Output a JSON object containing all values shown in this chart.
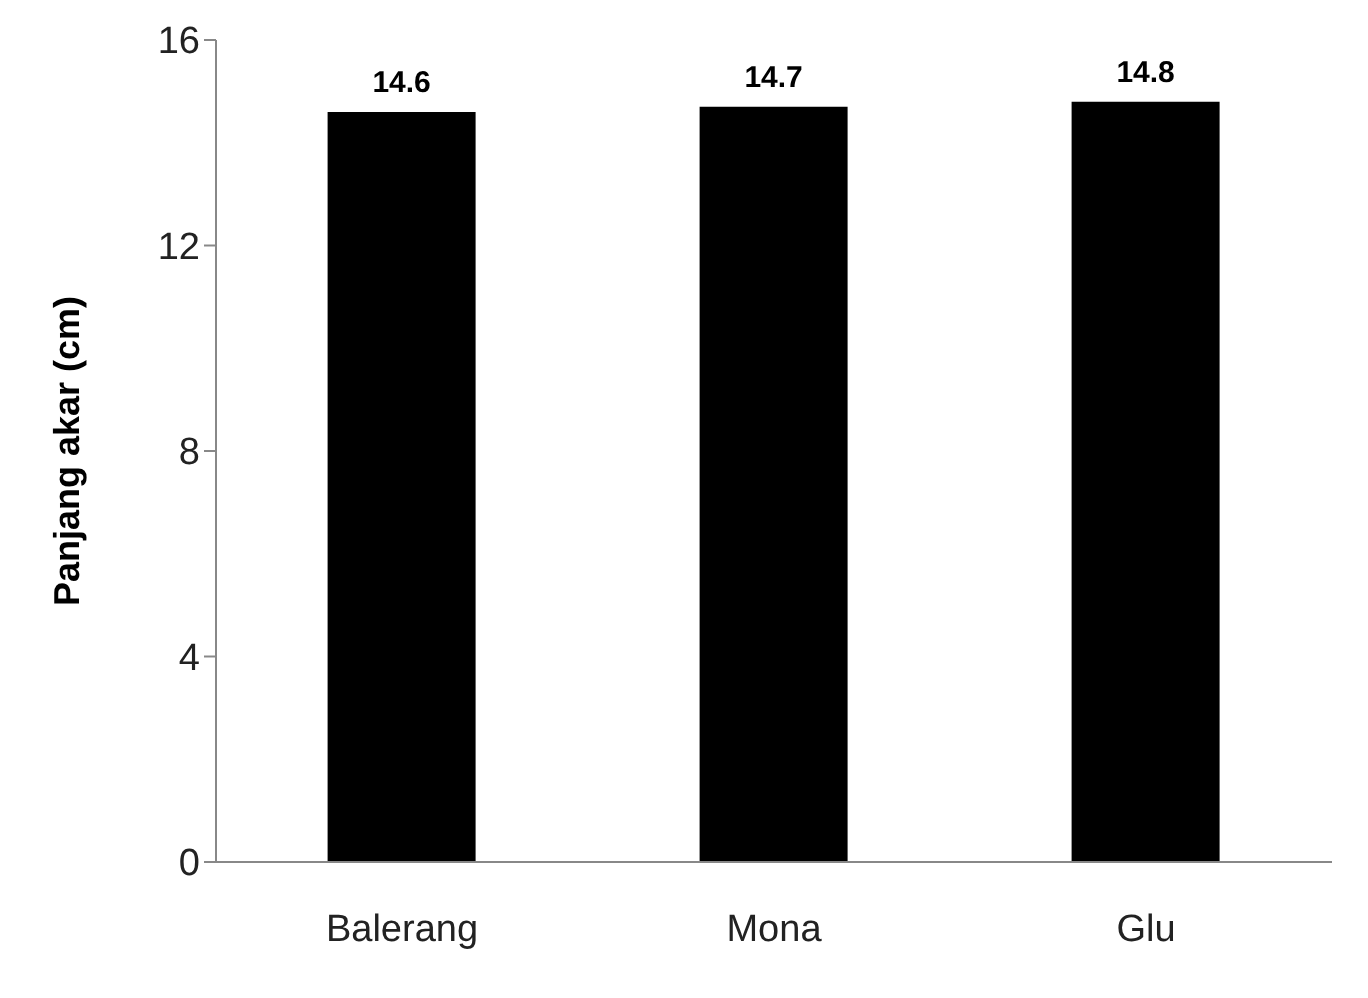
{
  "chart_data": {
    "type": "bar",
    "ylabel": "Panjang akar (cm)",
    "categories": [
      "Balerang",
      "Mona",
      "Glu"
    ],
    "values": [
      14.6,
      14.7,
      14.8
    ],
    "color": "#000000",
    "ylim": [
      0,
      16
    ],
    "yticks": [
      0,
      4,
      8,
      12,
      16
    ],
    "grid": false,
    "data_labels": true
  }
}
